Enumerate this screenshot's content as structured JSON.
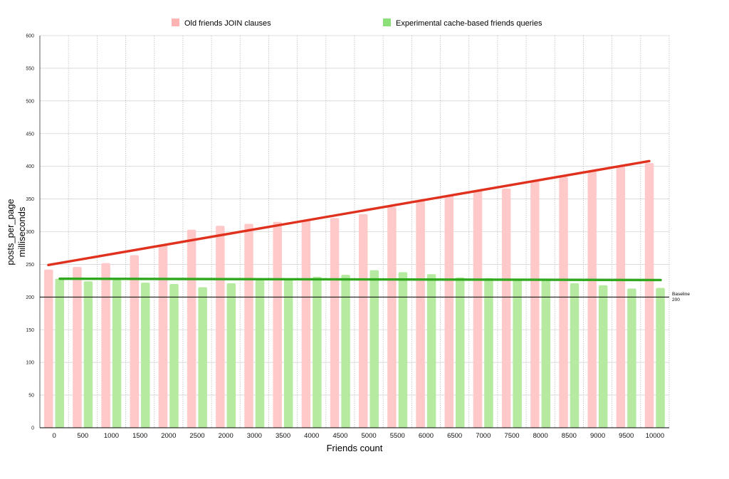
{
  "chart_data": {
    "type": "bar",
    "title": "",
    "xlabel": "Friends count",
    "ylabel": "posts_per_page",
    "ylabel2": "milliseconds",
    "ylim": [
      0,
      600
    ],
    "yticks": [
      0,
      50,
      100,
      150,
      200,
      250,
      300,
      350,
      400,
      450,
      500,
      550,
      600
    ],
    "grid": true,
    "legend_position": "top",
    "categories": [
      "0",
      "500",
      "1000",
      "1500",
      "2000",
      "2500",
      "2000",
      "3000",
      "3500",
      "4000",
      "4500",
      "5000",
      "5500",
      "6000",
      "6500",
      "7000",
      "7500",
      "8000",
      "8500",
      "9000",
      "9500",
      "10000"
    ],
    "series": [
      {
        "name": "Old friends JOIN clauses",
        "color": "#ffc9c9",
        "values": [
          242,
          246,
          252,
          264,
          280,
          303,
          309,
          312,
          315,
          318,
          321,
          327,
          338,
          348,
          356,
          363,
          366,
          378,
          384,
          394,
          401,
          405
        ]
      },
      {
        "name": "Experimental cache-based friends queries",
        "color": "#b6eaa1",
        "values": [
          228,
          224,
          226,
          222,
          220,
          215,
          221,
          226,
          226,
          231,
          234,
          241,
          238,
          235,
          230,
          229,
          226,
          226,
          221,
          218,
          213,
          214
        ]
      }
    ],
    "trendlines": [
      {
        "series": "Old friends JOIN clauses",
        "color": "#e0311f",
        "start": 249,
        "end": 408
      },
      {
        "series": "Experimental cache-based friends queries",
        "color": "#2fa81e",
        "start": 228,
        "end": 226
      }
    ],
    "reference_line": {
      "value": 200,
      "label_line1": "Baseline",
      "label_line2": "200",
      "color": "#000000"
    }
  }
}
